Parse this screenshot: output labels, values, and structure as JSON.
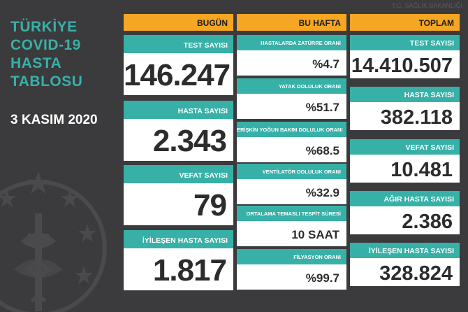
{
  "title_lines": [
    "TÜRKİYE",
    "COVID-19",
    "HASTA",
    "TABLOSU"
  ],
  "date": "3 KASIM 2020",
  "logo_text": "T.C. SAĞLIK BAKANLIĞI",
  "colors": {
    "background": "#3b3b3d",
    "header": "#f5a623",
    "label": "#37b1a7",
    "value_bg": "#ffffff"
  },
  "today": {
    "header": "BUGÜN",
    "items": [
      {
        "label": "TEST SAYISI",
        "value": "146.247"
      },
      {
        "label": "HASTA SAYISI",
        "value": "2.343"
      },
      {
        "label": "VEFAT SAYISI",
        "value": "79"
      },
      {
        "label": "İYİLEŞEN HASTA SAYISI",
        "value": "1.817"
      }
    ]
  },
  "this_week": {
    "header": "BU HAFTA",
    "items": [
      {
        "label": "HASTALARDA ZATÜRRE ORANI",
        "value": "%4.7"
      },
      {
        "label": "YATAK DOLULUK ORANI",
        "value": "%51.7"
      },
      {
        "label": "ERİŞKİN YOĞUN BAKIM DOLULUK ORANI",
        "value": "%68.5"
      },
      {
        "label": "VENTİLATÖR DOLULUK ORANI",
        "value": "%32.9"
      },
      {
        "label": "ORTALAMA TEMASLI TESPİT SÜRESİ",
        "value": "10 SAAT"
      },
      {
        "label": "FİLYASYON ORANI",
        "value": "%99.7"
      }
    ]
  },
  "total": {
    "header": "TOPLAM",
    "items": [
      {
        "label": "TEST SAYISI",
        "value": "14.410.507"
      },
      {
        "label": "HASTA SAYISI",
        "value": "382.118"
      },
      {
        "label": "VEFAT SAYISI",
        "value": "10.481"
      },
      {
        "label": "AĞIR HASTA SAYISI",
        "value": "2.386"
      },
      {
        "label": "İYİLEŞEN HASTA SAYISI",
        "value": "328.824"
      }
    ]
  }
}
